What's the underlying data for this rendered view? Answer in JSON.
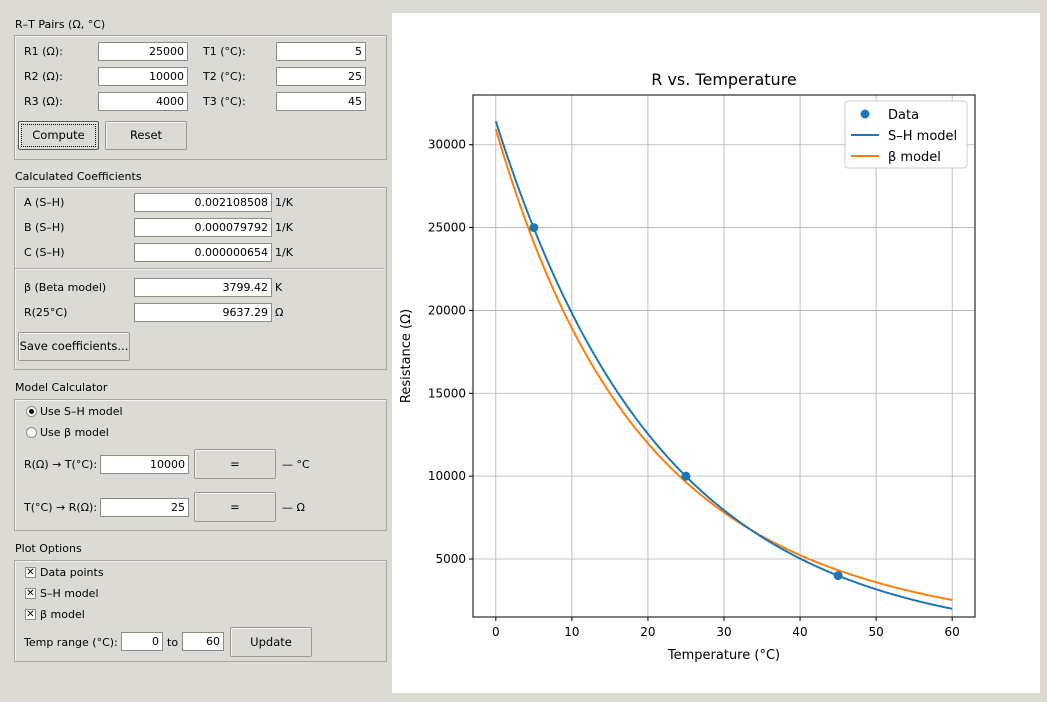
{
  "rt_pairs": {
    "title": "R–T Pairs (Ω, °C)",
    "r1_label": "R1 (Ω):",
    "r1_value": "25000",
    "r2_label": "R2 (Ω):",
    "r2_value": "10000",
    "r3_label": "R3 (Ω):",
    "r3_value": "4000",
    "t1_label": "T1 (°C):",
    "t1_value": "5",
    "t2_label": "T2 (°C):",
    "t2_value": "25",
    "t3_label": "T3 (°C):",
    "t3_value": "45",
    "compute_label": "Compute",
    "reset_label": "Reset"
  },
  "coefficients": {
    "title": "Calculated Coefficients",
    "a_label": "A (S–H)",
    "a_value": "0.002108508",
    "a_unit": "1/K",
    "b_label": "B (S–H)",
    "b_value": "0.000079792",
    "b_unit": "1/K",
    "c_label": "C (S–H)",
    "c_value": "0.000000654",
    "c_unit": "1/K",
    "beta_label": "β (Beta model)",
    "beta_value": "3799.42",
    "beta_unit": "K",
    "r25_label": "R(25°C)",
    "r25_value": "9637.29",
    "r25_unit": "Ω",
    "save_label": "Save coefficients..."
  },
  "model_calc": {
    "title": "Model Calculator",
    "use_sh_label": "Use S–H model",
    "use_beta_label": "Use β model",
    "r_to_t_label": "R(Ω) → T(°C):",
    "r_to_t_value": "10000",
    "r_to_t_result": "— °C",
    "t_to_r_label": "T(°C) → R(Ω):",
    "t_to_r_value": "25",
    "t_to_r_result": "— Ω",
    "equals_label": "="
  },
  "plot_options": {
    "title": "Plot Options",
    "data_points_label": "Data points",
    "sh_model_label": "S–H model",
    "beta_model_label": "β model",
    "check_mark": "✕",
    "temp_range_label": "Temp range (°C):",
    "temp_min": "0",
    "to_label": "to",
    "temp_max": "60",
    "update_label": "Update"
  },
  "chart_data": {
    "type": "line",
    "title": "R vs. Temperature",
    "xlabel": "Temperature (°C)",
    "ylabel": "Resistance (Ω)",
    "xlim": [
      -3,
      63
    ],
    "ylim": [
      1500,
      33000
    ],
    "xticks": [
      0,
      10,
      20,
      30,
      40,
      50,
      60
    ],
    "yticks": [
      5000,
      10000,
      15000,
      20000,
      25000,
      30000
    ],
    "grid": true,
    "legend_position": "upper right",
    "points": {
      "name": "Data",
      "color": "#1f77b4",
      "x": [
        5,
        25,
        45
      ],
      "y": [
        25000,
        10000,
        4000
      ]
    },
    "sh_model": {
      "name": "S–H model",
      "color": "#1f77b4",
      "a": 0.002108508,
      "b": 7.9792e-05,
      "c": 6.54e-07
    },
    "beta_model": {
      "name": "β model",
      "color": "#ff7f0e",
      "beta": 3799.42,
      "r25": 9637.29
    },
    "t_range": [
      0,
      60
    ]
  }
}
